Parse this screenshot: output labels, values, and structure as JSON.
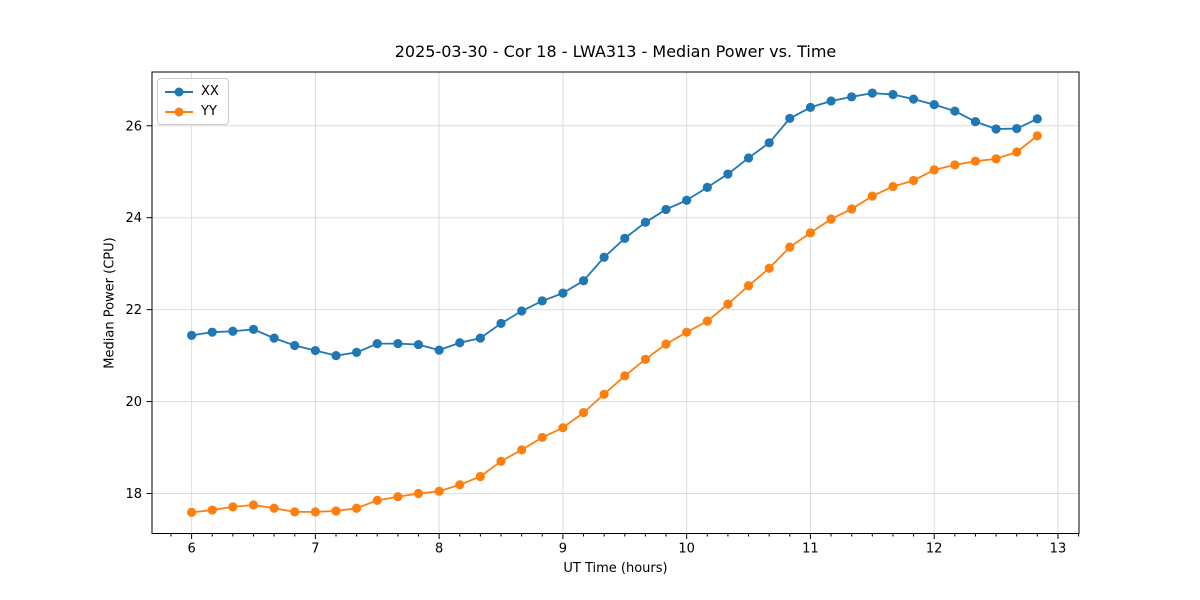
{
  "figure": {
    "title": "2025-03-30 - Cor 18 - LWA313 - Median Power vs. Time"
  },
  "chart_data": {
    "type": "line",
    "title": "2025-03-30 - Cor 18 - LWA313 - Median Power vs. Time",
    "xlabel": "UT Time (hours)",
    "ylabel": "Median Power (CPU)",
    "xlim": [
      5.68,
      13.17
    ],
    "ylim": [
      17.13,
      27.17
    ],
    "xticks": [
      6,
      7,
      8,
      9,
      10,
      11,
      12,
      13
    ],
    "yticks": [
      18,
      20,
      22,
      24,
      26
    ],
    "x_minor_ticks_per_hour": 6,
    "grid": "major-only",
    "legend_position": "upper-left",
    "marker": "circle",
    "x": [
      6.0,
      6.167,
      6.333,
      6.5,
      6.667,
      6.833,
      7.0,
      7.167,
      7.333,
      7.5,
      7.667,
      7.833,
      8.0,
      8.167,
      8.333,
      8.5,
      8.667,
      8.833,
      9.0,
      9.167,
      9.333,
      9.5,
      9.667,
      9.833,
      10.0,
      10.167,
      10.333,
      10.5,
      10.667,
      10.833,
      11.0,
      11.167,
      11.333,
      11.5,
      11.667,
      11.833,
      12.0,
      12.167,
      12.333,
      12.5,
      12.667,
      12.833
    ],
    "series": [
      {
        "name": "XX",
        "color": "#1f77b4",
        "values": [
          21.44,
          21.51,
          21.53,
          21.57,
          21.38,
          21.22,
          21.11,
          21.0,
          21.07,
          21.26,
          21.26,
          21.24,
          21.12,
          21.28,
          21.38,
          21.7,
          21.97,
          22.19,
          22.36,
          22.63,
          23.14,
          23.55,
          23.9,
          24.18,
          24.38,
          24.66,
          24.95,
          25.3,
          25.63,
          26.16,
          26.4,
          26.54,
          26.63,
          26.71,
          26.68,
          26.58,
          26.46,
          26.32,
          26.09,
          25.93,
          25.94,
          26.15
        ]
      },
      {
        "name": "YY",
        "color": "#ff7f0e",
        "values": [
          17.59,
          17.64,
          17.71,
          17.75,
          17.68,
          17.6,
          17.6,
          17.62,
          17.68,
          17.85,
          17.93,
          18.0,
          18.05,
          18.19,
          18.37,
          18.7,
          18.95,
          19.22,
          19.43,
          19.76,
          20.16,
          20.56,
          20.92,
          21.25,
          21.51,
          21.75,
          22.12,
          22.52,
          22.9,
          23.36,
          23.67,
          23.97,
          24.19,
          24.47,
          24.68,
          24.81,
          25.04,
          25.15,
          25.23,
          25.28,
          25.43,
          25.78
        ]
      }
    ],
    "style": {
      "grid_color": "#dddddd",
      "spine_color": "#000000",
      "tick_label_size": 13,
      "title_size": 16
    }
  }
}
